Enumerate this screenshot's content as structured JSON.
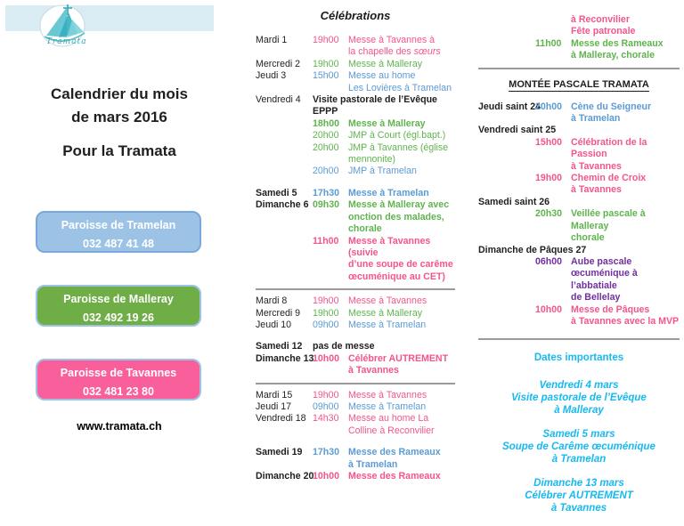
{
  "colors": {
    "pink": "#F4558C",
    "green": "#5FB44E",
    "blue": "#5B9BD5",
    "purple": "#7030A0",
    "cyan": "#16B9F0",
    "black": "#1F1F1F",
    "divider": "#9A9A9A",
    "band": "#D9EBF3",
    "logo_teal": "#2FA8B5"
  },
  "left": {
    "logo_text": "Tramata",
    "title_line1": "Calendrier du mois",
    "title_line2": "de mars 2016",
    "subtitle": "Pour la Tramata",
    "website": "www.tramata.ch",
    "parishes": [
      {
        "name": "Paroisse de Tramelan",
        "phone": "032 487 41 48",
        "fill": "#9CC3E5",
        "border": "#79A8DC"
      },
      {
        "name": "Paroisse de Malleray",
        "phone": "032 492 19 26",
        "fill": "#6FAD47",
        "border": "#9DC3E6"
      },
      {
        "name": "Paroisse de Tavannes",
        "phone": "032 481 23 80",
        "fill": "#F95F9B",
        "border": "#9DC3E6"
      }
    ]
  },
  "celebrations": {
    "title": "Célébrations",
    "sections": [
      {
        "rows": [
          {
            "d": "Mardi 1",
            "t": "19h00",
            "c": "pink",
            "desc": [
              "Messe à Tavannes à",
              "la chapelle des *sœurs*"
            ]
          },
          {
            "d": "Mercredi 2",
            "t": "19h00",
            "c": "green",
            "desc": [
              "Messe à Malleray"
            ]
          },
          {
            "d": "Jeudi 3",
            "t": "15h00",
            "c": "blue",
            "desc": [
              "Messe au home",
              "Les Lovières à Tramelan"
            ]
          },
          {
            "d": "Vendredi 4",
            "t": "",
            "c": "black",
            "cb": true,
            "span": true,
            "desc": [
              "Visite pastorale de l’Evêque EPPP"
            ]
          },
          {
            "d": "",
            "t": "18h00",
            "c": "green",
            "cb": true,
            "desc": [
              "Messe à Malleray"
            ]
          },
          {
            "d": "",
            "t": "20h00",
            "c": "green",
            "desc": [
              "JMP à Court (égl.bapt.)"
            ]
          },
          {
            "d": "",
            "t": "20h00",
            "c": "green",
            "desc": [
              "JMP à Tavannes (église",
              "mennonite)"
            ]
          },
          {
            "d": "",
            "t": "20h00",
            "c": "blue",
            "desc": [
              "JMP à Tramelan"
            ]
          },
          {
            "d": "Samedi 5",
            "db": true,
            "gap": true,
            "t": "17h30",
            "c": "blue",
            "cb": true,
            "desc": [
              "Messe à Tramelan"
            ]
          },
          {
            "d": "Dimanche 6",
            "db": true,
            "t": "09h30",
            "c": "green",
            "cb": true,
            "desc": [
              "Messe à Malleray avec",
              "onction des malades,",
              "chorale"
            ]
          },
          {
            "d": "",
            "t": "11h00",
            "c": "pink",
            "cb": true,
            "desc": [
              "Messe à Tavannes (suivie",
              "d’une soupe de carême",
              "œcuménique au CET)"
            ]
          }
        ]
      },
      {
        "rows": [
          {
            "d": "Mardi 8",
            "t": "19h00",
            "c": "pink",
            "desc": [
              "Messe à Tavannes"
            ]
          },
          {
            "d": "Mercredi 9",
            "t": "19h00",
            "c": "green",
            "desc": [
              "Messe à Malleray"
            ]
          },
          {
            "d": "Jeudi 10",
            "t": "09h00",
            "c": "blue",
            "desc": [
              "Messe à Tramelan"
            ]
          },
          {
            "d": "Samedi 12",
            "db": true,
            "gap": true,
            "t": "",
            "c": "black",
            "cb": true,
            "span": true,
            "desc": [
              "pas de messe"
            ]
          },
          {
            "d": "Dimanche 13",
            "db": true,
            "t": "10h00",
            "c": "pink",
            "cb": true,
            "desc": [
              "Célébrer AUTREMENT",
              "à Tavannes"
            ]
          }
        ]
      },
      {
        "rows": [
          {
            "d": "Mardi 15",
            "t": "19h00",
            "c": "pink",
            "desc": [
              "Messe à Tavannes"
            ]
          },
          {
            "d": "Jeudi 17",
            "t": "09h00",
            "c": "blue",
            "desc": [
              "Messe à Tramelan"
            ]
          },
          {
            "d": "Vendredi 18",
            "t": "14h30",
            "c": "pink",
            "desc": [
              "Messe au home La",
              "Colline à Reconvilier"
            ]
          },
          {
            "d": "Samedi 19",
            "db": true,
            "gap": true,
            "t": "17h30",
            "c": "blue",
            "cb": true,
            "desc": [
              "Messe des Rameaux",
              " à Tramelan"
            ]
          },
          {
            "d": "Dimanche 20",
            "db": true,
            "t": "10h00",
            "c": "pink",
            "cb": true,
            "desc": [
              "Messe des Rameaux"
            ]
          }
        ]
      }
    ]
  },
  "right": {
    "continuation_rows": [
      {
        "d": "",
        "t": "",
        "c": "pink",
        "cb": true,
        "desc": [
          "à Reconvilier"
        ]
      },
      {
        "d": "",
        "t": "",
        "c": "pink",
        "cb": true,
        "desc": [
          "Fête patronale"
        ]
      },
      {
        "d": "",
        "t": "11h00",
        "c": "green",
        "cb": true,
        "desc": [
          "Messe des Rameaux",
          "à Malleray, chorale"
        ]
      }
    ],
    "montee": {
      "title": "MONTÉE PASCALE TRAMATA",
      "rows": [
        {
          "d": "Jeudi saint 24",
          "db": true,
          "t": "20h00",
          "c": "blue",
          "cb": true,
          "desc": [
            "Cène du Seigneur",
            "à Tramelan"
          ]
        },
        {
          "d": "Vendredi saint 25",
          "db": true,
          "t": "",
          "c": "black",
          "span": true,
          "desc": [
            ""
          ]
        },
        {
          "d": "",
          "t": "15h00",
          "c": "pink",
          "cb": true,
          "desc": [
            "Célébration de la Passion",
            "à Tavannes"
          ]
        },
        {
          "d": "",
          "t": "19h00",
          "c": "pink",
          "cb": true,
          "desc": [
            "Chemin de Croix",
            "à Tavannes"
          ]
        },
        {
          "d": "Samedi saint 26",
          "db": true,
          "t": "",
          "c": "black",
          "span": true,
          "desc": [
            ""
          ]
        },
        {
          "d": "",
          "t": "20h30",
          "c": "green",
          "cb": true,
          "desc": [
            "Veillée pascale à Malleray",
            "chorale"
          ]
        },
        {
          "d": "Dimanche de Pâques 27",
          "db": true,
          "t": "",
          "c": "black",
          "span": true,
          "desc": [
            ""
          ]
        },
        {
          "d": "",
          "t": "06h00",
          "c": "purple",
          "cb": true,
          "desc": [
            "Aube pascale",
            "œcuménique à l’abbatiale",
            "de Bellelay"
          ]
        },
        {
          "d": "",
          "t": "10h00",
          "c": "pink",
          "cb": true,
          "desc": [
            "Messe de Pâques",
            "à Tavannes avec la MVP"
          ]
        }
      ]
    },
    "dates": {
      "title": "Dates importantes",
      "items": [
        [
          "Vendredi 4 mars",
          "Visite pastorale de l’Evêque",
          "à Malleray"
        ],
        [
          "Samedi 5 mars",
          "Soupe de Carême œcuménique",
          "à Tramelan"
        ],
        [
          "Dimanche 13 mars",
          "Célébrer AUTREMENT",
          "à Tavannes"
        ]
      ]
    }
  }
}
